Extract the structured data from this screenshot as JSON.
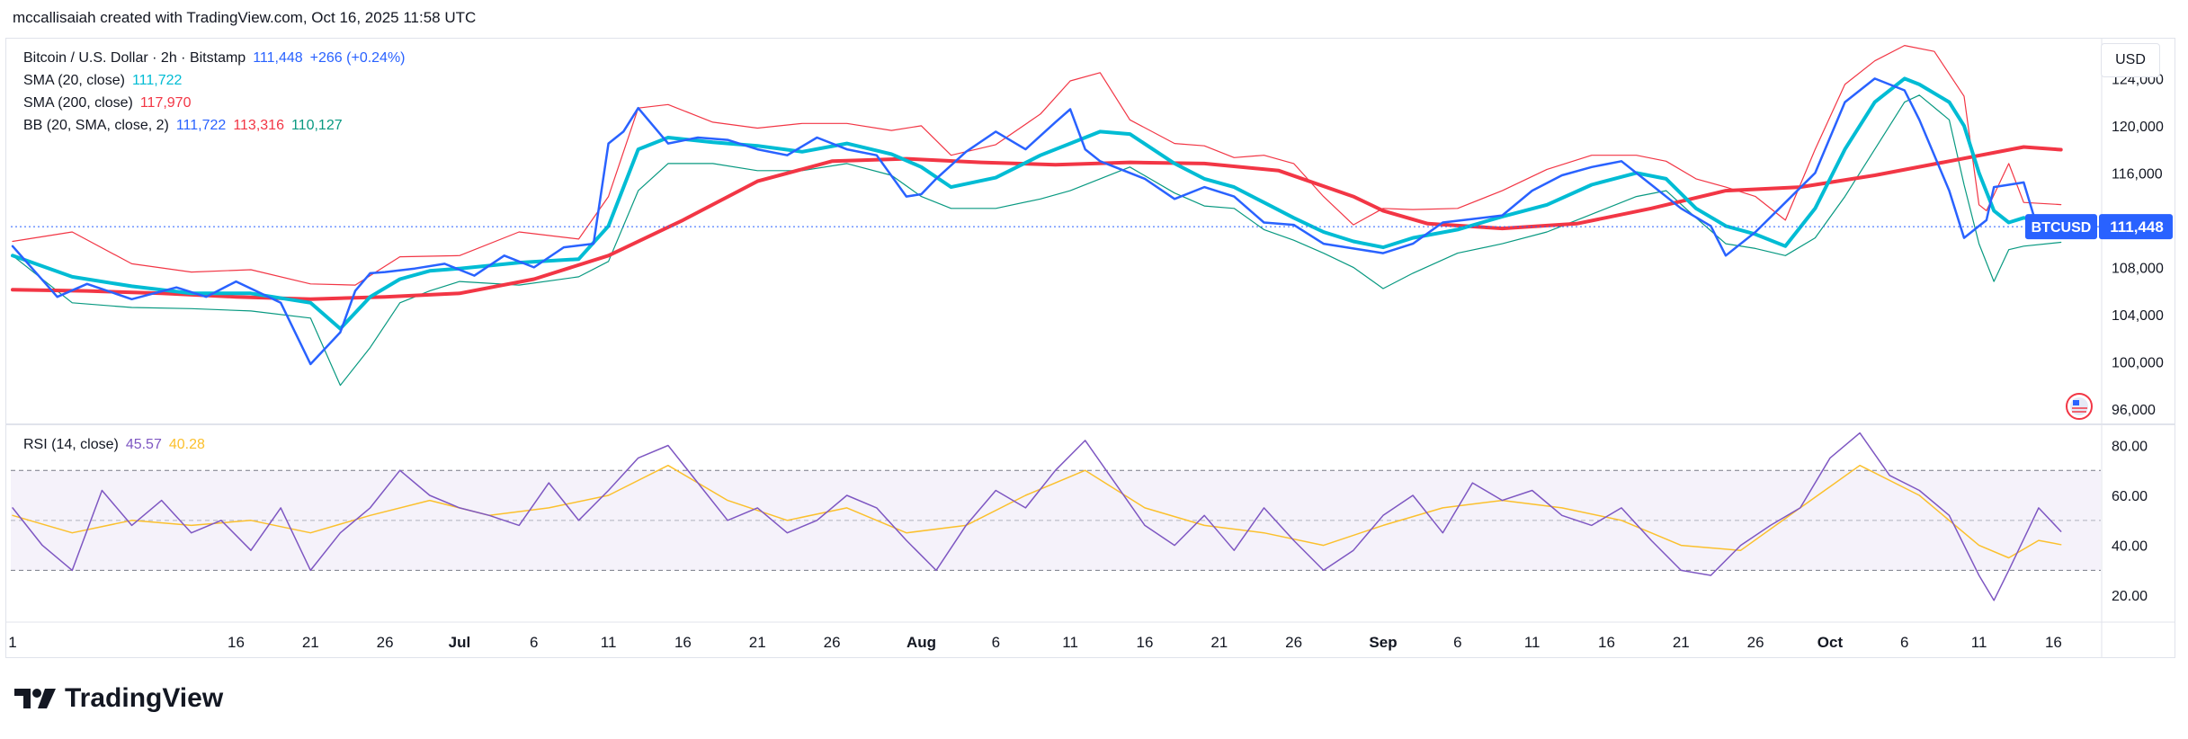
{
  "header": {
    "attribution": "mccallisaiah created with TradingView.com, Oct 16, 2025 11:58 UTC"
  },
  "legend": {
    "main": {
      "title": "Bitcoin / U.S. Dollar · 2h · Bitstamp",
      "price": "111,448",
      "change": "+266 (+0.24%)"
    },
    "sma20": {
      "label": "SMA (20, close)",
      "value": "111,722"
    },
    "sma200": {
      "label": "SMA (200, close)",
      "value": "117,970"
    },
    "bb": {
      "label": "BB (20, SMA, close, 2)",
      "basis": "111,722",
      "upper": "113,316",
      "lower": "110,127"
    },
    "rsi": {
      "label": "RSI (14, close)",
      "value": "45.57",
      "ma": "40.28"
    }
  },
  "currency": "USD",
  "price_badge": {
    "symbol": "BTCUSD",
    "value": "111,448"
  },
  "brand": {
    "name": "TradingView"
  },
  "colors": {
    "price": "#2962ff",
    "sma20": "#00bcd4",
    "sma200": "#f23645",
    "bb_upper": "#f23645",
    "bb_lower": "#089981",
    "rsi": "#7e57c2",
    "rsi_ma": "#fbc02d"
  },
  "chart_data": {
    "type": "line",
    "price_axis": {
      "ticks": [
        "124,000",
        "120,000",
        "116,000",
        "112,000",
        "108,000",
        "104,000",
        "100,000",
        "96,000"
      ],
      "tick_values": [
        124000,
        120000,
        116000,
        112000,
        108000,
        104000,
        100000,
        96000
      ],
      "range": [
        95000,
        127000
      ]
    },
    "rsi_axis": {
      "ticks": [
        "80.00",
        "60.00",
        "40.00",
        "20.00"
      ],
      "tick_values": [
        80,
        60,
        40,
        20
      ],
      "range": [
        10,
        87
      ],
      "band": [
        30,
        70
      ],
      "mid": 50
    },
    "x_axis": {
      "labels": [
        "1",
        "16",
        "21",
        "26",
        "Jul",
        "6",
        "11",
        "16",
        "21",
        "26",
        "Aug",
        "6",
        "11",
        "16",
        "21",
        "26",
        "Sep",
        "6",
        "11",
        "16",
        "21",
        "26",
        "Oct",
        "6",
        "11",
        "16"
      ],
      "label_days": [
        0,
        15,
        20,
        25,
        30,
        35,
        40,
        45,
        50,
        55,
        61,
        66,
        71,
        76,
        81,
        86,
        92,
        97,
        102,
        107,
        112,
        117,
        122,
        127,
        132,
        137
      ],
      "day_range": [
        0,
        138
      ]
    },
    "series": [
      {
        "name": "Bitcoin / U.S. Dollar",
        "key": "price",
        "x": [
          0,
          3,
          5,
          8,
          11,
          13,
          15,
          18,
          20,
          22,
          23,
          24,
          25,
          27,
          29,
          31,
          33,
          35,
          37,
          39,
          40,
          41,
          42,
          44,
          46,
          48,
          50,
          52,
          54,
          56,
          58,
          60,
          61,
          62,
          64,
          66,
          68,
          70,
          71,
          72,
          73,
          74,
          76,
          78,
          80,
          82,
          84,
          86,
          88,
          90,
          92,
          94,
          96,
          98,
          100,
          102,
          104,
          106,
          108,
          110,
          112,
          114,
          115,
          117,
          119,
          121,
          123,
          125,
          127,
          128,
          130,
          131,
          132,
          132.5,
          133,
          135,
          136,
          137.5
        ],
        "y": [
          109800,
          105500,
          106600,
          105300,
          106300,
          105500,
          106800,
          105000,
          99800,
          102500,
          106000,
          107500,
          107600,
          107900,
          108300,
          107300,
          109000,
          108000,
          109700,
          110000,
          118500,
          119500,
          121500,
          118500,
          119000,
          118800,
          118000,
          117500,
          119000,
          118000,
          117500,
          114000,
          114200,
          115500,
          117800,
          119500,
          118000,
          120300,
          121400,
          118000,
          117000,
          116500,
          115500,
          113800,
          114800,
          114000,
          111800,
          111600,
          110000,
          109600,
          109200,
          110000,
          111800,
          112100,
          112400,
          114500,
          115800,
          116500,
          117000,
          115000,
          113000,
          111500,
          109000,
          111000,
          113500,
          116000,
          122000,
          124000,
          123000,
          120500,
          114500,
          110500,
          111500,
          112000,
          114800,
          115200,
          111000,
          111448
        ]
      },
      {
        "name": "SMA (20, close)",
        "key": "sma20",
        "x": [
          0,
          4,
          8,
          12,
          16,
          20,
          22,
          24,
          26,
          28,
          30,
          34,
          38,
          40,
          42,
          44,
          47,
          50,
          53,
          56,
          59,
          61,
          63,
          66,
          69,
          71,
          73,
          75,
          78,
          80,
          82,
          84,
          86,
          88,
          90,
          92,
          94,
          97,
          100,
          103,
          106,
          109,
          111,
          113,
          115,
          117,
          119,
          121,
          123,
          125,
          127,
          128,
          130,
          131,
          132,
          133,
          134,
          135,
          137.5
        ],
        "y": [
          109000,
          107200,
          106400,
          105800,
          105800,
          105000,
          102800,
          105500,
          107000,
          107700,
          107900,
          108400,
          108700,
          111500,
          118000,
          119000,
          118600,
          118300,
          117800,
          118500,
          117600,
          116500,
          114800,
          115600,
          117500,
          118500,
          119500,
          119300,
          116800,
          115500,
          114800,
          113500,
          112200,
          111000,
          110200,
          109700,
          110500,
          111200,
          112300,
          113300,
          115000,
          116000,
          115500,
          113000,
          111500,
          110800,
          109800,
          113000,
          118000,
          122000,
          124000,
          123500,
          122000,
          120000,
          116000,
          112800,
          111800,
          112200,
          111722
        ]
      },
      {
        "name": "SMA (200, close)",
        "key": "sma200",
        "x": [
          0,
          5,
          10,
          15,
          20,
          25,
          30,
          35,
          40,
          45,
          50,
          55,
          60,
          65,
          70,
          75,
          80,
          85,
          90,
          92,
          95,
          100,
          105,
          110,
          115,
          120,
          125,
          130,
          135,
          137.5
        ],
        "y": [
          106100,
          106000,
          105800,
          105500,
          105300,
          105500,
          105800,
          107000,
          109000,
          112000,
          115300,
          117000,
          117200,
          116900,
          116700,
          116900,
          116800,
          116200,
          114000,
          112800,
          111700,
          111300,
          111700,
          113000,
          114500,
          114800,
          115800,
          117000,
          118200,
          117970
        ]
      },
      {
        "name": "BB upper",
        "key": "bb_upper",
        "x": [
          0,
          4,
          8,
          12,
          16,
          20,
          23,
          26,
          30,
          34,
          38,
          40,
          42,
          44,
          47,
          50,
          53,
          56,
          59,
          61,
          63,
          66,
          69,
          71,
          73,
          75,
          78,
          80,
          82,
          84,
          86,
          88,
          90,
          92,
          94,
          97,
          100,
          103,
          106,
          109,
          111,
          113,
          115,
          117,
          119,
          121,
          123,
          125,
          127,
          129,
          131,
          132,
          132.5,
          134,
          135,
          137.5
        ],
        "y": [
          110200,
          111000,
          108300,
          107600,
          107800,
          106600,
          106500,
          108900,
          109000,
          111000,
          110400,
          114000,
          121500,
          121800,
          120300,
          119800,
          120200,
          120200,
          119600,
          120000,
          117500,
          118400,
          121000,
          123800,
          124500,
          120500,
          118500,
          118300,
          117300,
          117500,
          116800,
          114000,
          111600,
          113000,
          112900,
          113000,
          114500,
          116300,
          117500,
          117500,
          117000,
          115500,
          114800,
          114000,
          112000,
          118000,
          123500,
          125500,
          126800,
          126300,
          122500,
          113300,
          112800,
          116800,
          113500,
          113316
        ]
      },
      {
        "name": "BB lower",
        "key": "bb_lower",
        "x": [
          0,
          4,
          8,
          12,
          16,
          20,
          22,
          24,
          26,
          28,
          30,
          34,
          38,
          40,
          42,
          44,
          47,
          50,
          53,
          56,
          59,
          61,
          63,
          66,
          69,
          71,
          73,
          75,
          78,
          80,
          82,
          84,
          86,
          88,
          90,
          92,
          94,
          97,
          100,
          103,
          106,
          109,
          111,
          113,
          115,
          117,
          119,
          121,
          123,
          125,
          127,
          128,
          130,
          131,
          132,
          133,
          134,
          135,
          137.5
        ],
        "y": [
          109000,
          105000,
          104600,
          104500,
          104300,
          103700,
          98000,
          101200,
          105000,
          106000,
          106800,
          106500,
          107200,
          108500,
          114500,
          116800,
          116800,
          116200,
          116200,
          116800,
          115800,
          114000,
          113000,
          113000,
          113800,
          114500,
          115500,
          116500,
          114300,
          113200,
          113000,
          111200,
          110300,
          109200,
          108000,
          106200,
          107500,
          109200,
          110000,
          111000,
          112500,
          114000,
          114500,
          112200,
          110000,
          109600,
          109000,
          110500,
          114000,
          118000,
          122000,
          122600,
          120500,
          115000,
          110000,
          106800,
          109500,
          109800,
          110127
        ]
      },
      {
        "name": "RSI (14, close)",
        "key": "rsi",
        "x": [
          0,
          2,
          4,
          6,
          8,
          10,
          12,
          14,
          16,
          18,
          20,
          22,
          24,
          26,
          28,
          30,
          32,
          34,
          36,
          38,
          40,
          42,
          44,
          46,
          48,
          50,
          52,
          54,
          56,
          58,
          60,
          62,
          64,
          66,
          68,
          70,
          72,
          74,
          76,
          78,
          80,
          82,
          84,
          86,
          88,
          90,
          92,
          94,
          96,
          98,
          100,
          102,
          104,
          106,
          108,
          110,
          112,
          114,
          116,
          118,
          120,
          122,
          124,
          126,
          128,
          130,
          132,
          133,
          134,
          136,
          137.5
        ],
        "y": [
          55,
          40,
          30,
          62,
          48,
          58,
          45,
          50,
          38,
          55,
          30,
          45,
          55,
          70,
          60,
          55,
          52,
          48,
          65,
          50,
          62,
          75,
          80,
          65,
          50,
          55,
          45,
          50,
          60,
          55,
          42,
          30,
          48,
          62,
          55,
          70,
          82,
          65,
          48,
          40,
          52,
          38,
          55,
          42,
          30,
          38,
          52,
          60,
          45,
          65,
          58,
          62,
          52,
          48,
          55,
          42,
          30,
          28,
          40,
          48,
          55,
          75,
          85,
          68,
          62,
          52,
          28,
          18,
          30,
          55,
          45.57
        ]
      },
      {
        "name": "RSI MA",
        "key": "rsi_ma",
        "x": [
          0,
          4,
          8,
          12,
          16,
          20,
          24,
          28,
          32,
          36,
          40,
          44,
          48,
          52,
          56,
          60,
          64,
          68,
          72,
          76,
          80,
          84,
          88,
          92,
          96,
          100,
          104,
          108,
          112,
          116,
          120,
          124,
          128,
          132,
          134,
          136,
          137.5
        ],
        "y": [
          52,
          45,
          50,
          48,
          50,
          45,
          52,
          58,
          52,
          55,
          60,
          72,
          58,
          50,
          55,
          45,
          48,
          60,
          70,
          55,
          48,
          45,
          40,
          48,
          55,
          58,
          55,
          50,
          40,
          38,
          55,
          72,
          60,
          40,
          35,
          42,
          40.28
        ]
      }
    ]
  }
}
